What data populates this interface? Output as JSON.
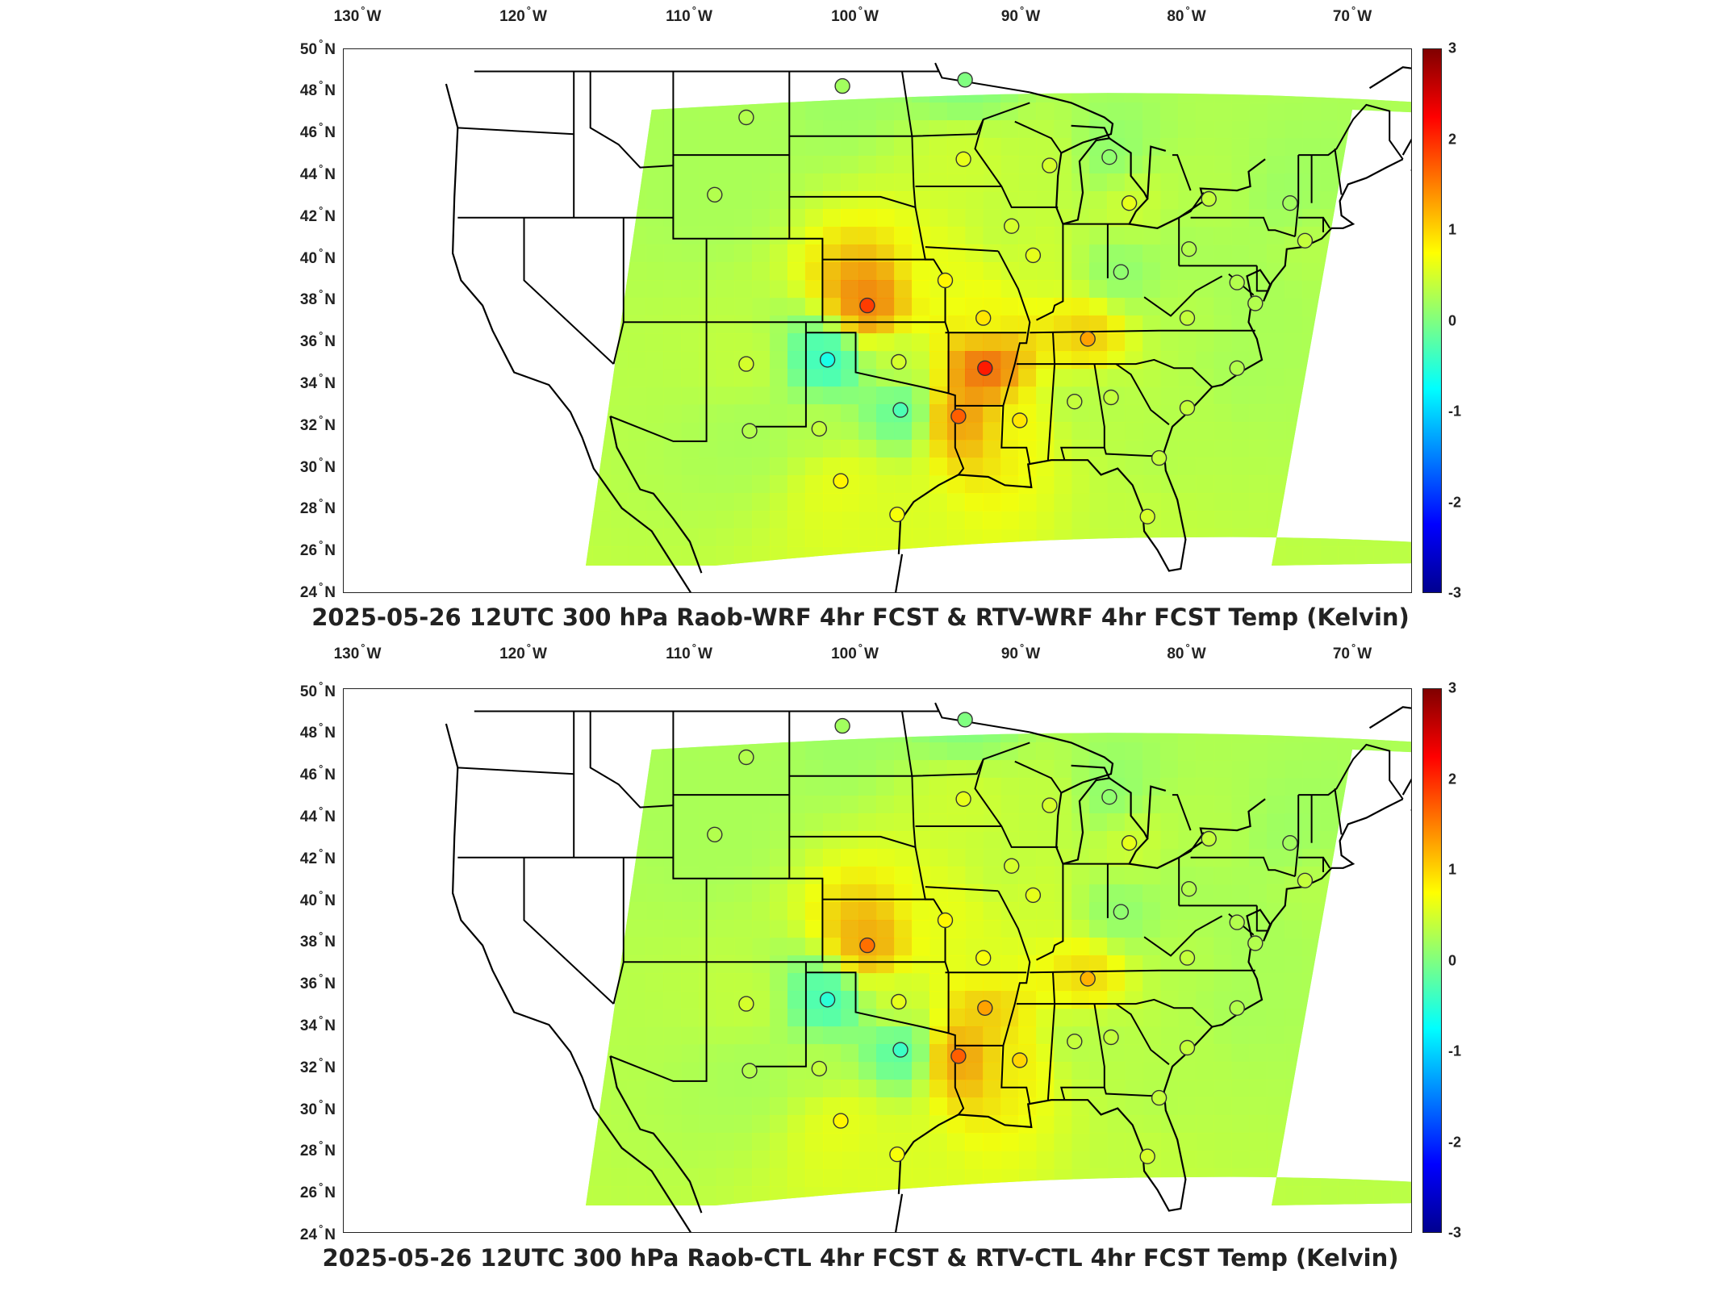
{
  "colors": {
    "coast": "#000000",
    "station_edge": "#333333",
    "colormap": [
      "#00008f",
      "#0000ff",
      "#0080ff",
      "#00ffff",
      "#80ff80",
      "#ffff00",
      "#ff8000",
      "#ff0000",
      "#800000"
    ]
  },
  "axes": {
    "lon_labels": [
      {
        "num": "130",
        "hemi": "W"
      },
      {
        "num": "120",
        "hemi": "W"
      },
      {
        "num": "110",
        "hemi": "W"
      },
      {
        "num": "100",
        "hemi": "W"
      },
      {
        "num": "90",
        "hemi": "W"
      },
      {
        "num": "80",
        "hemi": "W"
      },
      {
        "num": "70",
        "hemi": "W"
      }
    ],
    "lat_labels": [
      {
        "num": "50",
        "hemi": "N"
      },
      {
        "num": "48",
        "hemi": "N"
      },
      {
        "num": "46",
        "hemi": "N"
      },
      {
        "num": "44",
        "hemi": "N"
      },
      {
        "num": "42",
        "hemi": "N"
      },
      {
        "num": "40",
        "hemi": "N"
      },
      {
        "num": "38",
        "hemi": "N"
      },
      {
        "num": "36",
        "hemi": "N"
      },
      {
        "num": "34",
        "hemi": "N"
      },
      {
        "num": "32",
        "hemi": "N"
      },
      {
        "num": "30",
        "hemi": "N"
      },
      {
        "num": "28",
        "hemi": "N"
      },
      {
        "num": "26",
        "hemi": "N"
      },
      {
        "num": "24",
        "hemi": "N"
      }
    ],
    "lon_range_deg_w": [
      134,
      64
    ],
    "lat_range_deg_n": [
      24,
      50
    ]
  },
  "colorbar": {
    "ticks": [
      "3",
      "2",
      "1",
      "0",
      "-1",
      "-2",
      "-3"
    ],
    "range": [
      -3,
      3
    ]
  },
  "panels": [
    {
      "title": "2025-05-26 12UTC 300 hPa Raob-WRF 4hr FCST & RTV-WRF 4hr FCST Temp (Kelvin)",
      "stations": [
        {
          "lon": -106.6,
          "lat": 46.8,
          "value": 0.3
        },
        {
          "lon": -100.8,
          "lat": 48.3,
          "value": 0.2
        },
        {
          "lon": -93.4,
          "lat": 48.6,
          "value": 0.0
        },
        {
          "lon": -93.5,
          "lat": 44.8,
          "value": 0.6
        },
        {
          "lon": -88.3,
          "lat": 44.5,
          "value": 0.5
        },
        {
          "lon": -84.7,
          "lat": 44.9,
          "value": 0.1
        },
        {
          "lon": -83.5,
          "lat": 42.7,
          "value": 0.6
        },
        {
          "lon": -108.5,
          "lat": 43.1,
          "value": 0.3
        },
        {
          "lon": -90.6,
          "lat": 41.6,
          "value": 0.5
        },
        {
          "lon": -89.3,
          "lat": 40.2,
          "value": 0.6
        },
        {
          "lon": -84.0,
          "lat": 39.4,
          "value": 0.1
        },
        {
          "lon": -79.9,
          "lat": 40.5,
          "value": 0.3
        },
        {
          "lon": -78.7,
          "lat": 42.9,
          "value": 0.4
        },
        {
          "lon": -73.8,
          "lat": 42.7,
          "value": 0.2
        },
        {
          "lon": -72.9,
          "lat": 40.9,
          "value": 0.4
        },
        {
          "lon": -77.0,
          "lat": 38.9,
          "value": 0.3
        },
        {
          "lon": -75.9,
          "lat": 37.9,
          "value": 0.3
        },
        {
          "lon": -80.0,
          "lat": 37.2,
          "value": 0.4
        },
        {
          "lon": -86.0,
          "lat": 36.2,
          "value": 1.3
        },
        {
          "lon": -94.6,
          "lat": 39.0,
          "value": 0.8
        },
        {
          "lon": -99.3,
          "lat": 37.8,
          "value": 1.9
        },
        {
          "lon": -92.3,
          "lat": 37.2,
          "value": 0.9
        },
        {
          "lon": -92.2,
          "lat": 34.8,
          "value": 2.1
        },
        {
          "lon": -97.4,
          "lat": 35.1,
          "value": 0.5
        },
        {
          "lon": -101.7,
          "lat": 35.2,
          "value": -0.6
        },
        {
          "lon": -106.6,
          "lat": 35.0,
          "value": 0.5
        },
        {
          "lon": -106.4,
          "lat": 31.8,
          "value": 0.3
        },
        {
          "lon": -102.2,
          "lat": 31.9,
          "value": 0.4
        },
        {
          "lon": -97.3,
          "lat": 32.8,
          "value": -0.3
        },
        {
          "lon": -93.8,
          "lat": 32.5,
          "value": 1.7
        },
        {
          "lon": -90.1,
          "lat": 32.3,
          "value": 0.9
        },
        {
          "lon": -86.8,
          "lat": 33.2,
          "value": 0.4
        },
        {
          "lon": -84.6,
          "lat": 33.4,
          "value": 0.4
        },
        {
          "lon": -80.0,
          "lat": 32.9,
          "value": 0.4
        },
        {
          "lon": -81.7,
          "lat": 30.5,
          "value": 0.4
        },
        {
          "lon": -82.4,
          "lat": 27.7,
          "value": 0.5
        },
        {
          "lon": -97.5,
          "lat": 27.8,
          "value": 0.7
        },
        {
          "lon": -100.9,
          "lat": 29.4,
          "value": 0.8
        },
        {
          "lon": -77.0,
          "lat": 34.8,
          "value": 0.3
        }
      ]
    },
    {
      "title": "2025-05-26 12UTC 300 hPa Raob-CTL 4hr FCST & RTV-CTL 4hr FCST Temp (Kelvin)",
      "stations": [
        {
          "lon": -106.6,
          "lat": 46.8,
          "value": 0.3
        },
        {
          "lon": -100.8,
          "lat": 48.3,
          "value": 0.2
        },
        {
          "lon": -93.4,
          "lat": 48.6,
          "value": 0.0
        },
        {
          "lon": -93.5,
          "lat": 44.8,
          "value": 0.6
        },
        {
          "lon": -88.3,
          "lat": 44.5,
          "value": 0.5
        },
        {
          "lon": -84.7,
          "lat": 44.9,
          "value": 0.1
        },
        {
          "lon": -83.5,
          "lat": 42.7,
          "value": 0.6
        },
        {
          "lon": -108.5,
          "lat": 43.1,
          "value": 0.3
        },
        {
          "lon": -90.6,
          "lat": 41.6,
          "value": 0.5
        },
        {
          "lon": -89.3,
          "lat": 40.2,
          "value": 0.6
        },
        {
          "lon": -84.0,
          "lat": 39.4,
          "value": 0.1
        },
        {
          "lon": -79.9,
          "lat": 40.5,
          "value": 0.3
        },
        {
          "lon": -78.7,
          "lat": 42.9,
          "value": 0.4
        },
        {
          "lon": -73.8,
          "lat": 42.7,
          "value": 0.2
        },
        {
          "lon": -72.9,
          "lat": 40.9,
          "value": 0.4
        },
        {
          "lon": -77.0,
          "lat": 38.9,
          "value": 0.3
        },
        {
          "lon": -75.9,
          "lat": 37.9,
          "value": 0.3
        },
        {
          "lon": -80.0,
          "lat": 37.2,
          "value": 0.4
        },
        {
          "lon": -86.0,
          "lat": 36.2,
          "value": 1.2
        },
        {
          "lon": -94.6,
          "lat": 39.0,
          "value": 0.8
        },
        {
          "lon": -99.3,
          "lat": 37.8,
          "value": 1.6
        },
        {
          "lon": -92.3,
          "lat": 37.2,
          "value": 0.7
        },
        {
          "lon": -92.2,
          "lat": 34.8,
          "value": 1.3
        },
        {
          "lon": -97.4,
          "lat": 35.1,
          "value": 0.6
        },
        {
          "lon": -101.7,
          "lat": 35.2,
          "value": -0.5
        },
        {
          "lon": -106.6,
          "lat": 35.0,
          "value": 0.5
        },
        {
          "lon": -106.4,
          "lat": 31.8,
          "value": 0.3
        },
        {
          "lon": -102.2,
          "lat": 31.9,
          "value": 0.4
        },
        {
          "lon": -97.3,
          "lat": 32.8,
          "value": -0.4
        },
        {
          "lon": -93.8,
          "lat": 32.5,
          "value": 1.7
        },
        {
          "lon": -90.1,
          "lat": 32.3,
          "value": 1.0
        },
        {
          "lon": -86.8,
          "lat": 33.2,
          "value": 0.4
        },
        {
          "lon": -84.6,
          "lat": 33.4,
          "value": 0.4
        },
        {
          "lon": -80.0,
          "lat": 32.9,
          "value": 0.4
        },
        {
          "lon": -81.7,
          "lat": 30.5,
          "value": 0.4
        },
        {
          "lon": -82.4,
          "lat": 27.7,
          "value": 0.5
        },
        {
          "lon": -97.5,
          "lat": 27.8,
          "value": 0.7
        },
        {
          "lon": -100.9,
          "lat": 29.4,
          "value": 0.8
        },
        {
          "lon": -77.0,
          "lat": 34.8,
          "value": 0.3
        }
      ]
    }
  ]
}
